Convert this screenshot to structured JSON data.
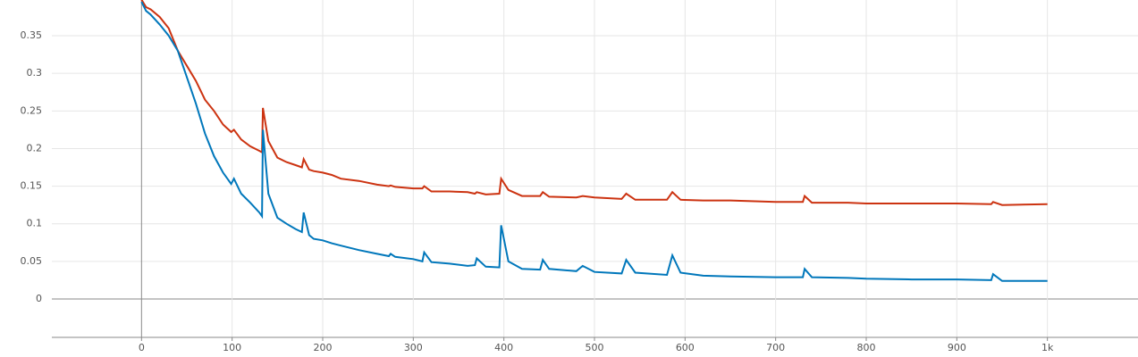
{
  "chart_data": {
    "type": "line",
    "x": [
      0,
      5,
      10,
      20,
      30,
      40,
      50,
      60,
      70,
      80,
      90,
      99,
      102,
      110,
      120,
      130,
      133,
      134,
      140,
      150,
      160,
      170,
      177,
      179,
      185,
      190,
      200,
      210,
      220,
      240,
      260,
      273,
      275,
      280,
      300,
      310,
      312,
      320,
      340,
      360,
      368,
      370,
      380,
      395,
      397,
      405,
      420,
      440,
      443,
      450,
      480,
      487,
      500,
      530,
      535,
      545,
      580,
      586,
      595,
      620,
      650,
      700,
      730,
      732,
      740,
      780,
      800,
      850,
      900,
      938,
      940,
      950,
      1000
    ],
    "series": [
      {
        "color": "#cc3311",
        "values": [
          0.398,
          0.388,
          0.385,
          0.375,
          0.36,
          0.33,
          0.31,
          0.29,
          0.265,
          0.25,
          0.232,
          0.222,
          0.225,
          0.212,
          0.203,
          0.197,
          0.195,
          0.254,
          0.21,
          0.188,
          0.182,
          0.178,
          0.175,
          0.186,
          0.172,
          0.17,
          0.168,
          0.165,
          0.16,
          0.157,
          0.152,
          0.15,
          0.151,
          0.149,
          0.147,
          0.147,
          0.15,
          0.143,
          0.143,
          0.142,
          0.14,
          0.142,
          0.139,
          0.14,
          0.16,
          0.145,
          0.137,
          0.137,
          0.142,
          0.136,
          0.135,
          0.137,
          0.135,
          0.133,
          0.14,
          0.132,
          0.132,
          0.142,
          0.132,
          0.131,
          0.131,
          0.129,
          0.129,
          0.137,
          0.128,
          0.128,
          0.127,
          0.127,
          0.127,
          0.126,
          0.129,
          0.125,
          0.126
        ]
      },
      {
        "color": "#0077bb",
        "values": [
          0.395,
          0.383,
          0.378,
          0.365,
          0.35,
          0.33,
          0.295,
          0.26,
          0.22,
          0.19,
          0.168,
          0.153,
          0.16,
          0.14,
          0.128,
          0.115,
          0.11,
          0.225,
          0.14,
          0.108,
          0.1,
          0.093,
          0.089,
          0.115,
          0.085,
          0.08,
          0.078,
          0.074,
          0.071,
          0.065,
          0.06,
          0.057,
          0.06,
          0.056,
          0.053,
          0.05,
          0.062,
          0.049,
          0.047,
          0.044,
          0.045,
          0.054,
          0.043,
          0.042,
          0.098,
          0.05,
          0.04,
          0.039,
          0.052,
          0.04,
          0.037,
          0.044,
          0.036,
          0.034,
          0.052,
          0.035,
          0.032,
          0.058,
          0.035,
          0.031,
          0.03,
          0.029,
          0.029,
          0.04,
          0.029,
          0.028,
          0.027,
          0.026,
          0.026,
          0.025,
          0.033,
          0.024,
          0.024
        ]
      }
    ],
    "xlim": [
      -99,
      1100
    ],
    "ylim": [
      -0.051,
      0.3975
    ],
    "xticks": [
      0,
      100,
      200,
      300,
      400,
      500,
      600,
      700,
      800,
      900,
      {
        "value": 1000,
        "label": "1k"
      }
    ],
    "yticks": [
      0,
      0.05,
      0.1,
      0.15,
      0.2,
      0.25,
      0.3,
      0.35
    ],
    "grid": true
  }
}
